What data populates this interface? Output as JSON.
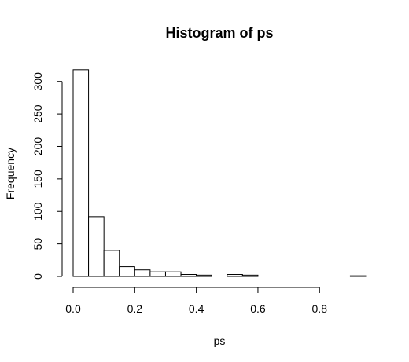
{
  "chart_data": {
    "type": "bar",
    "title": "Histogram of ps",
    "xlabel": "ps",
    "ylabel": "Frequency",
    "xlim": [
      0,
      0.95
    ],
    "ylim": [
      0,
      320
    ],
    "x_ticks": [
      0.0,
      0.2,
      0.4,
      0.6,
      0.8
    ],
    "x_tick_labels": [
      "0.0",
      "0.2",
      "0.4",
      "0.6",
      "0.8"
    ],
    "y_ticks": [
      0,
      50,
      100,
      150,
      200,
      250,
      300
    ],
    "y_tick_labels": [
      "0",
      "50",
      "100",
      "150",
      "200",
      "250",
      "300"
    ],
    "bins": [
      {
        "start": 0.0,
        "end": 0.05,
        "value": 318
      },
      {
        "start": 0.05,
        "end": 0.1,
        "value": 92
      },
      {
        "start": 0.1,
        "end": 0.15,
        "value": 40
      },
      {
        "start": 0.15,
        "end": 0.2,
        "value": 15
      },
      {
        "start": 0.2,
        "end": 0.25,
        "value": 10
      },
      {
        "start": 0.25,
        "end": 0.3,
        "value": 7
      },
      {
        "start": 0.3,
        "end": 0.35,
        "value": 7
      },
      {
        "start": 0.35,
        "end": 0.4,
        "value": 3
      },
      {
        "start": 0.4,
        "end": 0.45,
        "value": 2
      },
      {
        "start": 0.45,
        "end": 0.5,
        "value": 0
      },
      {
        "start": 0.5,
        "end": 0.55,
        "value": 3
      },
      {
        "start": 0.55,
        "end": 0.6,
        "value": 2
      },
      {
        "start": 0.6,
        "end": 0.65,
        "value": 0
      },
      {
        "start": 0.65,
        "end": 0.7,
        "value": 0
      },
      {
        "start": 0.7,
        "end": 0.75,
        "value": 0
      },
      {
        "start": 0.75,
        "end": 0.8,
        "value": 0
      },
      {
        "start": 0.8,
        "end": 0.85,
        "value": 0
      },
      {
        "start": 0.85,
        "end": 0.9,
        "value": 0
      },
      {
        "start": 0.9,
        "end": 0.95,
        "value": 1
      }
    ],
    "grid": false,
    "legend": "none"
  }
}
